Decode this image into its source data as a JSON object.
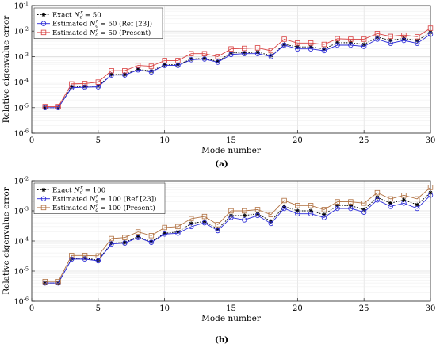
{
  "chart_data": [
    {
      "type": "line",
      "panel_label": "(a)",
      "xlabel": "Mode number",
      "ylabel": "Relative eigenvalue error",
      "yscale": "log",
      "xlim": [
        0,
        30
      ],
      "ylim": [
        1e-06,
        0.1
      ],
      "x_ticks": [
        "0",
        "5",
        "10",
        "15",
        "20",
        "25",
        "30"
      ],
      "y_ticks": [
        "10",
        "10",
        "10",
        "10",
        "10",
        "10"
      ],
      "y_tick_exponents": [
        "-6",
        "-5",
        "-4",
        "-3",
        "-2",
        "-1"
      ],
      "grid": true,
      "legend_position": "top-left",
      "x": [
        1,
        2,
        3,
        4,
        5,
        6,
        7,
        8,
        9,
        10,
        11,
        12,
        13,
        14,
        15,
        16,
        17,
        18,
        19,
        20,
        21,
        22,
        23,
        24,
        25,
        26,
        27,
        28,
        29,
        30
      ],
      "series": [
        {
          "name": "Exact N_d^r = 50",
          "legend_main": "Exact ",
          "legend_math": "N",
          "legend_sub": "d",
          "legend_sup": "r",
          "legend_tail": " = 50",
          "color": "#000000",
          "marker": "star",
          "dash": "dotted",
          "values": [
            1e-05,
            1e-05,
            6.5e-05,
            6.8e-05,
            7e-05,
            0.0002,
            0.0002,
            0.00032,
            0.00027,
            0.00048,
            0.00048,
            0.0008,
            0.00085,
            0.00065,
            0.0014,
            0.0014,
            0.0015,
            0.0011,
            0.003,
            0.0024,
            0.0024,
            0.002,
            0.0035,
            0.0035,
            0.003,
            0.0058,
            0.0043,
            0.0052,
            0.0042,
            0.009
          ]
        },
        {
          "name": "Estimated N_d^r = 50 (Ref [23])",
          "legend_main": "Estimated ",
          "legend_math": "N",
          "legend_sub": "d",
          "legend_sup": "r",
          "legend_tail": " = 50 (Ref [23])",
          "color": "#2a2ad8",
          "marker": "circle",
          "dash": "solid",
          "values": [
            1e-05,
            1e-05,
            6e-05,
            6.3e-05,
            6.5e-05,
            0.00019,
            0.00019,
            0.0003,
            0.00025,
            0.00045,
            0.00045,
            0.00075,
            0.0008,
            0.0006,
            0.0012,
            0.0013,
            0.0013,
            0.001,
            0.0028,
            0.002,
            0.002,
            0.0017,
            0.0028,
            0.0028,
            0.0025,
            0.0048,
            0.0033,
            0.0043,
            0.0033,
            0.0075
          ]
        },
        {
          "name": "Estimated N_d^r = 50 (Present)",
          "legend_main": "Estimated ",
          "legend_math": "N",
          "legend_sub": "d",
          "legend_sup": "r",
          "legend_tail": " = 50 (Present)",
          "color": "#d84040",
          "marker": "square",
          "dash": "solid",
          "values": [
            1.1e-05,
            1.1e-05,
            8.5e-05,
            8.8e-05,
            0.0001,
            0.00028,
            0.00028,
            0.00045,
            0.00042,
            0.0007,
            0.0007,
            0.0013,
            0.0013,
            0.001,
            0.002,
            0.0021,
            0.0022,
            0.0017,
            0.0048,
            0.0034,
            0.0034,
            0.003,
            0.005,
            0.0048,
            0.0048,
            0.008,
            0.0062,
            0.007,
            0.006,
            0.013
          ]
        }
      ]
    },
    {
      "type": "line",
      "panel_label": "(b)",
      "xlabel": "Mode number",
      "ylabel": "Relative eigenvalue error",
      "yscale": "log",
      "xlim": [
        0,
        30
      ],
      "ylim": [
        1e-06,
        0.01
      ],
      "x_ticks": [
        "0",
        "5",
        "10",
        "15",
        "20",
        "25",
        "30"
      ],
      "y_ticks": [
        "10",
        "10",
        "10",
        "10",
        "10"
      ],
      "y_tick_exponents": [
        "-6",
        "-5",
        "-4",
        "-3",
        "-2"
      ],
      "grid": true,
      "legend_position": "top-left",
      "x": [
        1,
        2,
        3,
        4,
        5,
        6,
        7,
        8,
        9,
        10,
        11,
        12,
        13,
        14,
        15,
        16,
        17,
        18,
        19,
        20,
        21,
        22,
        23,
        24,
        25,
        26,
        27,
        28,
        29,
        30
      ],
      "series": [
        {
          "name": "Exact N_d^r = 100",
          "legend_main": "Exact ",
          "legend_math": "N",
          "legend_sub": "d",
          "legend_sup": "r",
          "legend_tail": " = 100",
          "color": "#000000",
          "marker": "star",
          "dash": "dotted",
          "values": [
            4e-06,
            4e-06,
            2.6e-05,
            2.7e-05,
            2.3e-05,
            8.5e-05,
            9e-05,
            0.00014,
            9.5e-05,
            0.00018,
            0.0002,
            0.00038,
            0.00045,
            0.00025,
            0.0007,
            0.0007,
            0.0008,
            0.00045,
            0.0014,
            0.001,
            0.001,
            0.00075,
            0.0015,
            0.0015,
            0.0011,
            0.0028,
            0.0018,
            0.0023,
            0.0016,
            0.004
          ]
        },
        {
          "name": "Estimated N_d^r = 100 (Ref [23])",
          "legend_main": "Estimated ",
          "legend_math": "N",
          "legend_sub": "d",
          "legend_sup": "r",
          "legend_tail": " = 100 (Ref [23])",
          "color": "#2a2ad8",
          "marker": "circle",
          "dash": "solid",
          "values": [
            4e-06,
            4e-06,
            2.5e-05,
            2.5e-05,
            2.2e-05,
            8e-05,
            8.5e-05,
            0.00013,
            9e-05,
            0.00017,
            0.00018,
            0.0003,
            0.0004,
            0.00022,
            0.0006,
            0.0005,
            0.0007,
            0.00038,
            0.0012,
            0.0008,
            0.0008,
            0.0006,
            0.0012,
            0.0012,
            0.0009,
            0.0023,
            0.0014,
            0.0018,
            0.0012,
            0.0033
          ]
        },
        {
          "name": "Estimated N_d^r = 100 (Present)",
          "legend_main": "Estimated ",
          "legend_math": "N",
          "legend_sub": "d",
          "legend_sup": "r",
          "legend_tail": " = 100 (Present)",
          "color": "#b07040",
          "marker": "square",
          "dash": "solid",
          "values": [
            4.5e-06,
            4.5e-06,
            3.3e-05,
            3.3e-05,
            3.2e-05,
            0.00012,
            0.00013,
            0.0002,
            0.00015,
            0.00028,
            0.0003,
            0.00055,
            0.00065,
            0.00035,
            0.001,
            0.001,
            0.0011,
            0.00075,
            0.0022,
            0.0015,
            0.0015,
            0.0011,
            0.002,
            0.002,
            0.0018,
            0.004,
            0.0025,
            0.0033,
            0.0025,
            0.006
          ]
        }
      ]
    }
  ]
}
